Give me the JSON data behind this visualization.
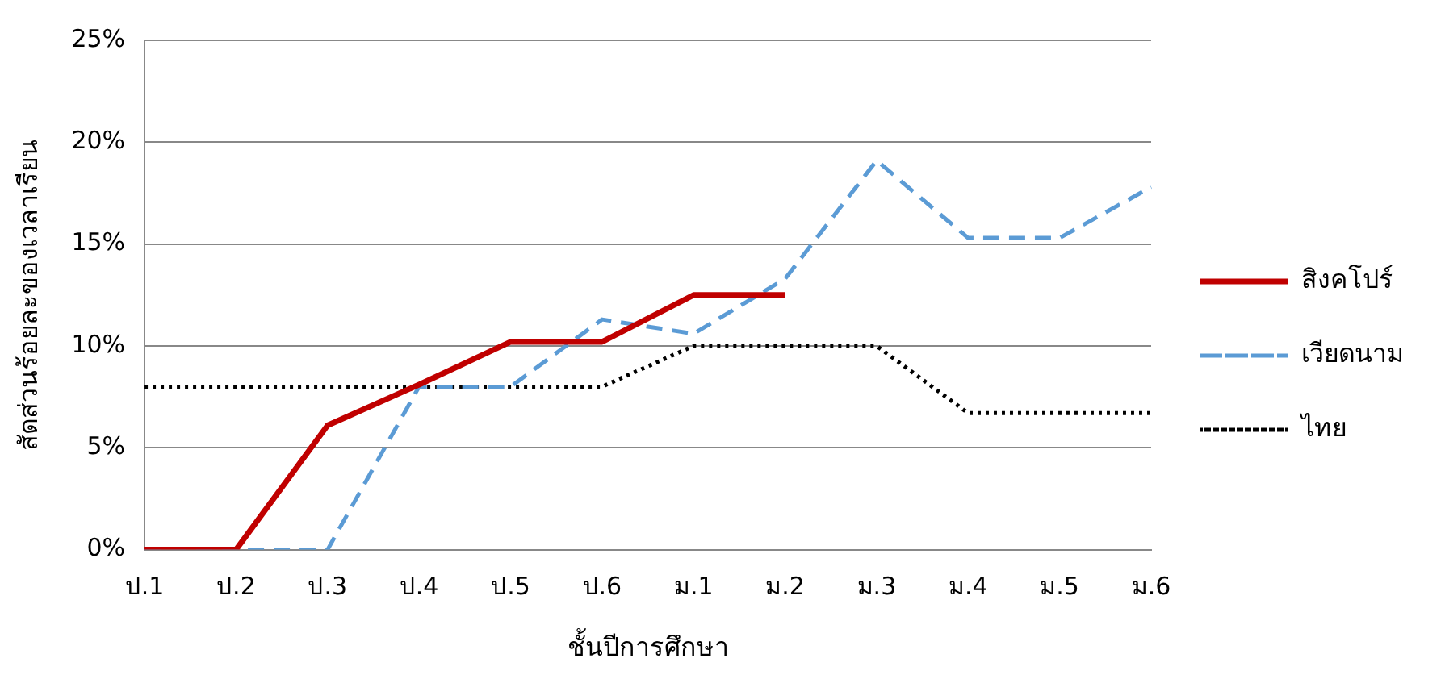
{
  "chart_data": {
    "type": "line",
    "xlabel": "ชั้นปีการศึกษา",
    "ylabel": "สัดส่วนร้อยละของเวลาเรียน",
    "categories": [
      "ป.1",
      "ป.2",
      "ป.3",
      "ป.4",
      "ป.5",
      "ป.6",
      "ม.1",
      "ม.2",
      "ม.3",
      "ม.4",
      "ม.5",
      "ม.6"
    ],
    "series": [
      {
        "name": "สิงคโปร์",
        "color": "#c00000",
        "line_style": "solid",
        "values": [
          0,
          0,
          6.1,
          8.1,
          10.2,
          10.2,
          12.5,
          12.5,
          null,
          null,
          null,
          null
        ]
      },
      {
        "name": "เวียดนาม",
        "color": "#5b9bd5",
        "line_style": "dashed",
        "values": [
          0,
          0,
          0,
          8.0,
          8.0,
          11.3,
          10.6,
          13.3,
          19.1,
          15.3,
          15.3,
          17.8
        ]
      },
      {
        "name": "ไทย",
        "color": "#000000",
        "line_style": "dotted",
        "values": [
          8.0,
          8.0,
          8.0,
          8.0,
          8.0,
          8.0,
          10.0,
          10.0,
          10.0,
          6.7,
          6.7,
          6.7
        ]
      }
    ],
    "ylim": [
      0,
      25
    ],
    "yticks": [
      {
        "value": 0,
        "label": "0%"
      },
      {
        "value": 5,
        "label": "5%"
      },
      {
        "value": 10,
        "label": "10%"
      },
      {
        "value": 15,
        "label": "15%"
      },
      {
        "value": 20,
        "label": "20%"
      },
      {
        "value": 25,
        "label": "25%"
      }
    ],
    "grid": "y",
    "legend": "right",
    "marker": "none"
  }
}
